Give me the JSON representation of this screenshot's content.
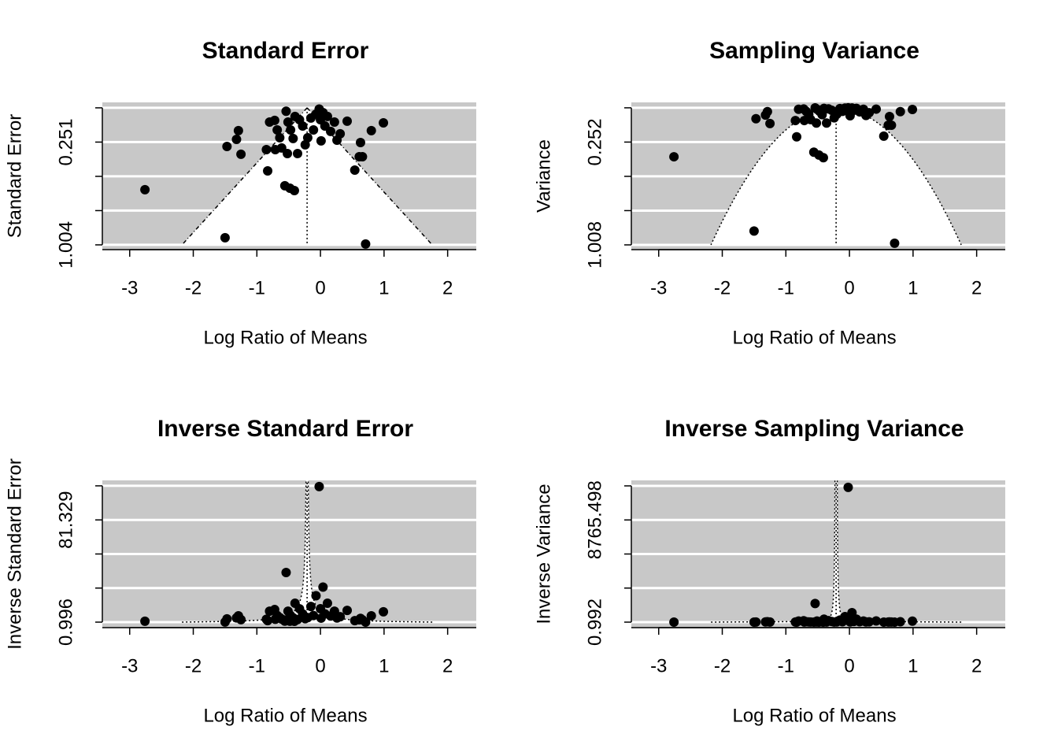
{
  "chart_data": [
    {
      "type": "funnel",
      "funnel": "se",
      "title": "Standard Error",
      "xlabel": "Log Ratio of Means",
      "ylabel": "Standard Error",
      "xlim": [
        -3.43,
        2.45
      ],
      "xticks": [
        -3,
        -2,
        -1,
        0,
        1,
        2
      ],
      "ylim": [
        1.039,
        -0.04
      ],
      "ygrid": [
        0,
        0.251,
        0.502,
        0.753,
        1.004
      ],
      "yticks": [
        0.251,
        1.004
      ],
      "estimate": -0.21,
      "color": "#000000",
      "background": "#c8c8c8",
      "x": [
        -2.76,
        -1.5,
        0.71,
        -1.47,
        -1.32,
        -1.29,
        -1.25,
        -0.83,
        -0.85,
        -0.8,
        -0.72,
        -0.68,
        -0.64,
        -0.71,
        -0.61,
        -0.56,
        -0.48,
        -0.41,
        -0.54,
        -0.51,
        -0.47,
        -0.43,
        -0.52,
        -0.36,
        -0.4,
        -0.33,
        -0.28,
        -0.24,
        -0.2,
        -0.15,
        -0.11,
        -0.07,
        -0.02,
        0.0,
        0.04,
        0.01,
        0.07,
        0.11,
        0.16,
        0.22,
        0.26,
        0.31,
        0.42,
        0.54,
        0.61,
        0.66,
        0.63,
        0.8,
        0.99
      ],
      "y": [
        0.6,
        0.952,
        0.998,
        0.283,
        0.231,
        0.167,
        0.34,
        0.462,
        0.306,
        0.104,
        0.092,
        0.162,
        0.219,
        0.306,
        0.294,
        0.571,
        0.589,
        0.606,
        0.025,
        0.104,
        0.162,
        0.225,
        0.335,
        0.335,
        0.063,
        0.087,
        0.133,
        0.271,
        0.219,
        0.075,
        0.162,
        0.046,
        0.0093,
        0.087,
        0.035,
        0.242,
        0.133,
        0.063,
        0.173,
        0.104,
        0.237,
        0.19,
        0.098,
        0.456,
        0.358,
        0.358,
        0.254,
        0.167,
        0.11
      ]
    },
    {
      "type": "funnel",
      "funnel": "var",
      "title": "Sampling Variance",
      "xlabel": "Log Ratio of Means",
      "ylabel": "Variance",
      "xlim": [
        -3.43,
        2.45
      ],
      "xticks": [
        -3,
        -2,
        -1,
        0,
        1,
        2
      ],
      "ylim": [
        1.043,
        -0.04
      ],
      "ygrid": [
        0,
        0.252,
        0.504,
        0.756,
        1.008
      ],
      "yticks": [
        0.252,
        1.008
      ],
      "estimate": -0.21,
      "color": "#000000",
      "background": "#c8c8c8",
      "x": [
        -2.76,
        -1.5,
        0.71,
        -1.47,
        -1.32,
        -1.29,
        -1.25,
        -0.83,
        -0.85,
        -0.8,
        -0.72,
        -0.68,
        -0.64,
        -0.71,
        -0.61,
        -0.56,
        -0.48,
        -0.41,
        -0.54,
        -0.51,
        -0.47,
        -0.43,
        -0.52,
        -0.36,
        -0.4,
        -0.33,
        -0.28,
        -0.24,
        -0.2,
        -0.15,
        -0.11,
        -0.07,
        -0.02,
        0.0,
        0.04,
        0.01,
        0.07,
        0.11,
        0.16,
        0.22,
        0.26,
        0.31,
        0.42,
        0.54,
        0.61,
        0.66,
        0.63,
        0.8,
        0.99
      ],
      "y": [
        0.36,
        0.906,
        0.996,
        0.0801,
        0.0534,
        0.0279,
        0.1156,
        0.2134,
        0.0936,
        0.0108,
        0.00846,
        0.0262,
        0.048,
        0.0936,
        0.0864,
        0.326,
        0.347,
        0.367,
        0.000625,
        0.0108,
        0.0262,
        0.0506,
        0.1122,
        0.1122,
        0.00397,
        0.00757,
        0.0177,
        0.0734,
        0.048,
        0.00563,
        0.0262,
        0.00212,
        8.65e-05,
        0.00757,
        0.001225,
        0.0586,
        0.0177,
        0.00397,
        0.0299,
        0.0108,
        0.0562,
        0.0361,
        0.0096,
        0.208,
        0.128,
        0.128,
        0.0645,
        0.0279,
        0.0121
      ]
    },
    {
      "type": "funnel",
      "funnel": "inv_se",
      "title": "Inverse Standard Error",
      "xlabel": "Log Ratio of Means",
      "ylabel": "Inverse Standard Error",
      "xlim": [
        -3.43,
        2.45
      ],
      "xticks": [
        -3,
        -2,
        -1,
        0,
        1,
        2
      ],
      "ylim": [
        -3.33,
        112.4
      ],
      "ygrid": [
        0.996,
        27.774,
        54.551,
        81.329,
        108.107
      ],
      "yticks": [
        0.996,
        81.329
      ],
      "estimate": -0.21,
      "color": "#000000",
      "background": "#c8c8c8",
      "x": [
        -2.76,
        -1.5,
        0.71,
        -1.47,
        -1.32,
        -1.29,
        -1.25,
        -0.83,
        -0.85,
        -0.8,
        -0.72,
        -0.68,
        -0.64,
        -0.71,
        -0.61,
        -0.56,
        -0.48,
        -0.41,
        -0.54,
        -0.51,
        -0.47,
        -0.43,
        -0.52,
        -0.36,
        -0.4,
        -0.33,
        -0.28,
        -0.24,
        -0.2,
        -0.15,
        -0.11,
        -0.07,
        -0.02,
        0.0,
        0.04,
        0.01,
        0.07,
        0.11,
        0.16,
        0.22,
        0.26,
        0.31,
        0.42,
        0.54,
        0.61,
        0.66,
        0.63,
        0.8,
        0.99
      ],
      "y": [
        1.667,
        1.05,
        1.002,
        3.534,
        4.329,
        5.988,
        2.941,
        2.165,
        3.268,
        9.615,
        10.87,
        6.173,
        4.566,
        3.268,
        3.401,
        1.751,
        1.698,
        1.65,
        40,
        9.615,
        6.173,
        4.444,
        2.985,
        2.985,
        15.87,
        11.49,
        7.519,
        3.69,
        4.566,
        13.33,
        6.173,
        21.74,
        107.5,
        11.49,
        28.57,
        4.132,
        7.519,
        15.87,
        5.78,
        9.615,
        4.219,
        5.263,
        10.2,
        2.193,
        2.793,
        2.793,
        3.937,
        5.988,
        9.091
      ]
    },
    {
      "type": "funnel",
      "funnel": "inv_var",
      "title": "Inverse Sampling Variance",
      "xlabel": "Log Ratio of Means",
      "ylabel": "Inverse Variance",
      "xlim": [
        -3.43,
        2.45
      ],
      "xticks": [
        -3,
        -2,
        -1,
        0,
        1,
        2
      ],
      "ylim": [
        -471,
        12159
      ],
      "ygrid": [
        0.992,
        2922.494,
        5843.996,
        8765.498,
        11687
      ],
      "yticks": [
        0.992,
        8765.498
      ],
      "estimate": -0.21,
      "color": "#000000",
      "background": "#c8c8c8",
      "x": [
        -2.76,
        -1.5,
        0.71,
        -1.47,
        -1.32,
        -1.29,
        -1.25,
        -0.83,
        -0.85,
        -0.8,
        -0.72,
        -0.68,
        -0.64,
        -0.71,
        -0.61,
        -0.56,
        -0.48,
        -0.41,
        -0.54,
        -0.51,
        -0.47,
        -0.43,
        -0.52,
        -0.36,
        -0.4,
        -0.33,
        -0.28,
        -0.24,
        -0.2,
        -0.15,
        -0.11,
        -0.07,
        -0.02,
        0.0,
        0.04,
        0.01,
        0.07,
        0.11,
        0.16,
        0.22,
        0.26,
        0.31,
        0.42,
        0.54,
        0.61,
        0.66,
        0.63,
        0.8,
        0.99
      ],
      "y": [
        2.778,
        1.103,
        1.004,
        12.49,
        18.74,
        35.86,
        8.651,
        4.685,
        10.68,
        92.46,
        118.1,
        38.1,
        20.85,
        10.68,
        11.57,
        3.067,
        2.882,
        2.723,
        1600,
        92.46,
        38.1,
        19.75,
        8.911,
        8.911,
        252.0,
        132.1,
        56.53,
        13.62,
        20.85,
        177.8,
        38.1,
        472.6,
        11562,
        132.1,
        816.3,
        17.08,
        56.53,
        252.0,
        33.41,
        92.46,
        17.8,
        27.7,
        104.1,
        4.809,
        7.803,
        7.803,
        15.5,
        35.86,
        82.64
      ]
    }
  ]
}
